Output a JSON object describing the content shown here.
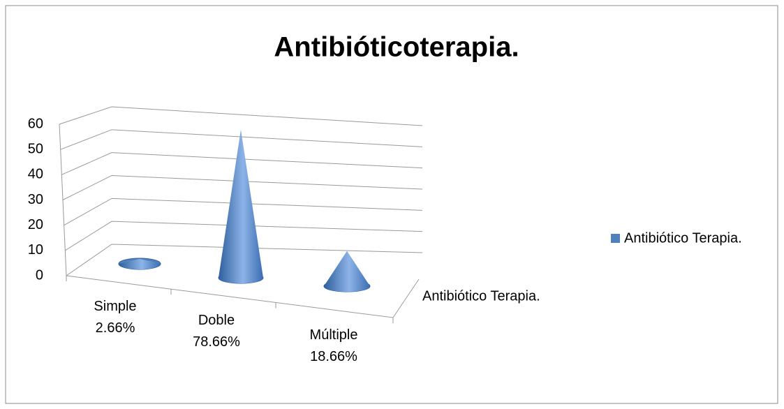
{
  "chart_data": {
    "type": "cone3d",
    "title": "Antibióticoterapia.",
    "categories": [
      "Simple 2.66%",
      "Doble 78.66%",
      "Múltiple 18.66%"
    ],
    "series": [
      {
        "name": "Antibiótico Terapia.",
        "color": "#4f81bd",
        "values": [
          2,
          59,
          14
        ]
      }
    ],
    "ylim": [
      0,
      60
    ],
    "yticks": [
      0,
      10,
      20,
      30,
      40,
      50,
      60
    ],
    "grid": true,
    "legend": "right"
  }
}
